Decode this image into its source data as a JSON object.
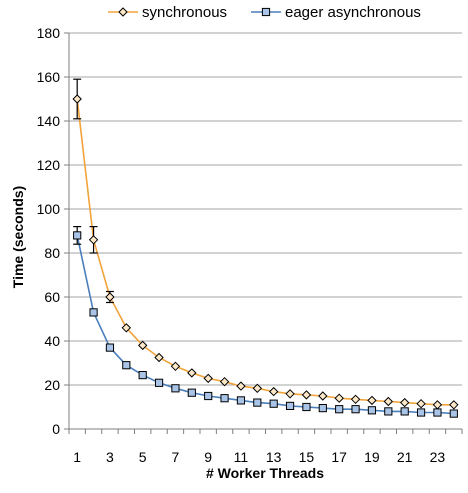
{
  "chart_data": {
    "type": "line",
    "title": "",
    "xlabel": "# Worker Threads",
    "ylabel": "Time (seconds)",
    "xlim": [
      0.5,
      24.5
    ],
    "ylim": [
      0,
      180
    ],
    "x_ticks": [
      1,
      3,
      5,
      7,
      9,
      11,
      13,
      15,
      17,
      19,
      21,
      23
    ],
    "y_ticks": [
      0,
      20,
      40,
      60,
      80,
      100,
      120,
      140,
      160,
      180
    ],
    "grid": "horizontal",
    "legend_position": "top",
    "x": [
      1,
      2,
      3,
      4,
      5,
      6,
      7,
      8,
      9,
      10,
      11,
      12,
      13,
      14,
      15,
      16,
      17,
      18,
      19,
      20,
      21,
      22,
      23,
      24
    ],
    "series": [
      {
        "name": "synchronous",
        "color": "#f2a33a",
        "marker": "diamond",
        "marker_fill": "#fde9c8",
        "values": [
          150,
          86,
          60,
          46,
          38,
          32.5,
          28.5,
          25.5,
          23,
          21.5,
          19.5,
          18.5,
          17,
          16,
          15.5,
          15,
          14,
          13.5,
          13,
          12.5,
          12,
          11.5,
          11,
          11
        ],
        "error": [
          9,
          6,
          2.5,
          1,
          1,
          1,
          0.5,
          0.5,
          0.5,
          0.5,
          0.5,
          0.5,
          0.5,
          0.5,
          0.5,
          0.5,
          0.5,
          0.5,
          0.5,
          0.5,
          0.5,
          0.5,
          0.5,
          0.5
        ]
      },
      {
        "name": "eager asynchronous",
        "color": "#4a7ebb",
        "marker": "square",
        "marker_fill": "#a9c4e6",
        "values": [
          88,
          53,
          37,
          29,
          24.5,
          21,
          18.5,
          16.5,
          15,
          14,
          13,
          12,
          11.5,
          10.5,
          10,
          9.5,
          9,
          9,
          8.5,
          8,
          8,
          7.5,
          7.5,
          7
        ],
        "error": [
          4,
          1.5,
          1,
          0.5,
          0.5,
          0.5,
          0.5,
          0.5,
          0.5,
          0.5,
          0.5,
          0.5,
          0.5,
          0.5,
          0.5,
          0.5,
          0.5,
          0.5,
          0.5,
          0.5,
          0.5,
          0.5,
          0.5,
          0.5
        ]
      }
    ]
  }
}
